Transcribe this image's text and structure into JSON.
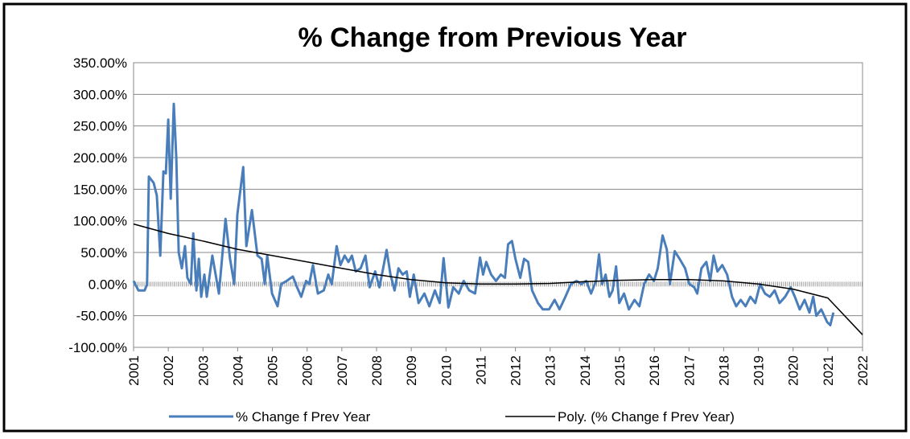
{
  "chart_data": {
    "type": "line",
    "title": "% Change from Previous Year",
    "xlim": [
      2001,
      2022
    ],
    "xticks": [
      2001,
      2002,
      2003,
      2004,
      2005,
      2006,
      2007,
      2008,
      2009,
      2010,
      2011,
      2012,
      2013,
      2014,
      2015,
      2016,
      2017,
      2018,
      2019,
      2020,
      2021,
      2022
    ],
    "ylim": [
      -100,
      350
    ],
    "yticks": [
      {
        "value": -100,
        "label": "-100.00%"
      },
      {
        "value": -50,
        "label": "-50.00%"
      },
      {
        "value": 0,
        "label": "0.00%"
      },
      {
        "value": 50,
        "label": "50.00%"
      },
      {
        "value": 100,
        "label": "100.00%"
      },
      {
        "value": 150,
        "label": "150.00%"
      },
      {
        "value": 200,
        "label": "200.00%"
      },
      {
        "value": 250,
        "label": "250.00%"
      },
      {
        "value": 300,
        "label": "300.00%"
      },
      {
        "value": 350,
        "label": "350.00%"
      }
    ],
    "grid": true,
    "legend": "bottom",
    "series": [
      {
        "name": "% Change f Prev Year",
        "color": "#4a7ebb",
        "x": [
          2001.0,
          2001.14,
          2001.32,
          2001.39,
          2001.44,
          2001.58,
          2001.67,
          2001.77,
          2001.86,
          2001.93,
          2002.0,
          2002.07,
          2002.16,
          2002.23,
          2002.3,
          2002.39,
          2002.48,
          2002.55,
          2002.65,
          2002.72,
          2002.81,
          2002.88,
          2002.95,
          2003.04,
          2003.11,
          2003.27,
          2003.46,
          2003.65,
          2003.78,
          2003.9,
          2003.99,
          2004.16,
          2004.25,
          2004.41,
          2004.57,
          2004.69,
          2004.78,
          2004.85,
          2004.99,
          2005.15,
          2005.25,
          2005.41,
          2005.59,
          2005.71,
          2005.83,
          2005.97,
          2006.06,
          2006.17,
          2006.31,
          2006.48,
          2006.61,
          2006.71,
          2006.85,
          2006.96,
          2007.08,
          2007.19,
          2007.29,
          2007.4,
          2007.54,
          2007.68,
          2007.8,
          2007.96,
          2008.08,
          2008.19,
          2008.29,
          2008.4,
          2008.52,
          2008.63,
          2008.75,
          2008.87,
          2008.96,
          2009.07,
          2009.21,
          2009.38,
          2009.52,
          2009.68,
          2009.82,
          2009.93,
          2010.07,
          2010.21,
          2010.37,
          2010.51,
          2010.67,
          2010.84,
          2010.98,
          2011.07,
          2011.16,
          2011.3,
          2011.44,
          2011.58,
          2011.7,
          2011.79,
          2011.9,
          2012.0,
          2012.14,
          2012.25,
          2012.37,
          2012.48,
          2012.65,
          2012.79,
          2012.97,
          2013.13,
          2013.27,
          2013.44,
          2013.6,
          2013.76,
          2013.9,
          2014.04,
          2014.18,
          2014.32,
          2014.41,
          2014.5,
          2014.6,
          2014.71,
          2014.8,
          2014.9,
          2014.99,
          2015.13,
          2015.27,
          2015.43,
          2015.57,
          2015.71,
          2015.85,
          2015.99,
          2016.1,
          2016.24,
          2016.36,
          2016.45,
          2016.59,
          2016.73,
          2016.89,
          2017.01,
          2017.15,
          2017.24,
          2017.36,
          2017.5,
          2017.61,
          2017.71,
          2017.82,
          2017.96,
          2018.1,
          2018.24,
          2018.36,
          2018.49,
          2018.63,
          2018.77,
          2018.91,
          2019.05,
          2019.19,
          2019.33,
          2019.47,
          2019.61,
          2019.77,
          2019.93,
          2020.05,
          2020.19,
          2020.33,
          2020.47,
          2020.58,
          2020.67,
          2020.81,
          2020.98,
          2021.07,
          2021.16
        ],
        "values": [
          5,
          -10,
          -10,
          0,
          170,
          160,
          140,
          45,
          178,
          175,
          260,
          135,
          285,
          200,
          50,
          25,
          60,
          10,
          0,
          80,
          -10,
          40,
          -20,
          15,
          -20,
          45,
          -15,
          103,
          40,
          0,
          110,
          185,
          60,
          117,
          45,
          40,
          0,
          45,
          -15,
          -35,
          0,
          5,
          12,
          -5,
          -20,
          5,
          0,
          30,
          -15,
          -10,
          15,
          0,
          60,
          30,
          45,
          35,
          45,
          20,
          25,
          45,
          -5,
          20,
          -5,
          25,
          54,
          15,
          -10,
          25,
          15,
          20,
          -20,
          15,
          -30,
          -15,
          -35,
          -10,
          -30,
          41,
          -37,
          -5,
          -15,
          5,
          -10,
          -15,
          42,
          15,
          35,
          15,
          5,
          15,
          10,
          63,
          68,
          40,
          10,
          40,
          35,
          -10,
          -30,
          -40,
          -40,
          -25,
          -40,
          -20,
          0,
          5,
          0,
          5,
          -15,
          5,
          47,
          0,
          15,
          -20,
          -10,
          28,
          -30,
          -15,
          -40,
          -25,
          -35,
          0,
          15,
          5,
          25,
          77,
          55,
          0,
          52,
          40,
          25,
          0,
          -5,
          -15,
          25,
          35,
          5,
          45,
          20,
          30,
          15,
          -20,
          -35,
          -25,
          -35,
          -20,
          -30,
          0,
          -15,
          -20,
          -10,
          -30,
          -20,
          -5,
          -20,
          -40,
          -25,
          -45,
          -20,
          -50,
          -40,
          -60,
          -65,
          -45
        ]
      },
      {
        "name": "Poly. (% Change f Prev Year)",
        "color": "#000000",
        "x": [
          2001,
          2002,
          2003,
          2004,
          2005,
          2006,
          2007,
          2008,
          2009,
          2010,
          2011,
          2012,
          2013,
          2014,
          2015,
          2016,
          2017,
          2018,
          2019,
          2020,
          2021,
          2022
        ],
        "values": [
          95,
          80,
          68,
          55,
          45,
          35,
          25,
          15,
          7,
          2,
          0,
          0,
          1,
          4,
          6,
          7,
          7,
          5,
          0,
          -8,
          -22,
          -80
        ]
      }
    ]
  }
}
